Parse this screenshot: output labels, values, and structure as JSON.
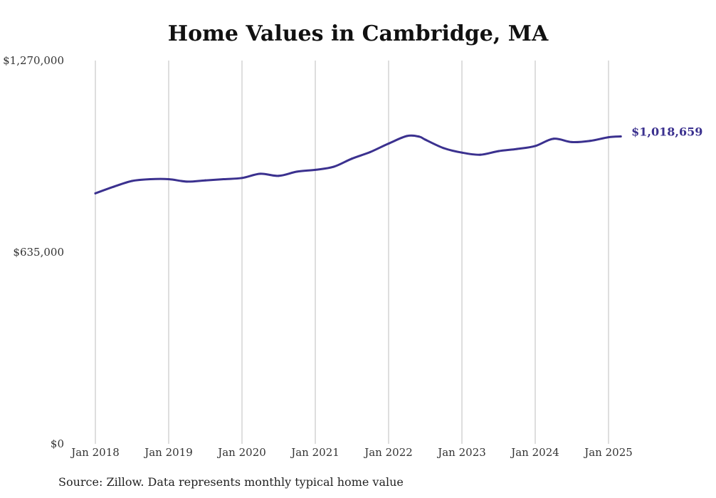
{
  "page": {
    "title": "Home Values in Cambridge, MA",
    "source": "Source: Zillow. Data represents monthly typical home value"
  },
  "chart_data": {
    "type": "line",
    "title": "Home Values in Cambridge, MA",
    "xlabel": "",
    "ylabel": "",
    "x_ticks": [
      "Jan 2018",
      "Jan 2019",
      "Jan 2020",
      "Jan 2021",
      "Jan 2022",
      "Jan 2023",
      "Jan 2024",
      "Jan 2025"
    ],
    "y_ticks": [
      {
        "value": 0,
        "label": "$0"
      },
      {
        "value": 635000,
        "label": "$635,000"
      },
      {
        "value": 1270000,
        "label": "$1,270,000"
      }
    ],
    "ylim": [
      0,
      1270000
    ],
    "xlim": [
      "2018-01",
      "2025-03"
    ],
    "grid": {
      "vertical": true,
      "horizontal": false
    },
    "line_color": "#3b318f",
    "grid_color": "#bdbdbd",
    "end_label": "$1,018,659",
    "series": [
      {
        "x": [
          "2018-01",
          "2018-04",
          "2018-07",
          "2018-10",
          "2019-01",
          "2019-04",
          "2019-07",
          "2019-10",
          "2020-01",
          "2020-04",
          "2020-07",
          "2020-10",
          "2021-01",
          "2021-04",
          "2021-07",
          "2021-10",
          "2022-01",
          "2022-04",
          "2022-06",
          "2022-07",
          "2022-10",
          "2023-01",
          "2023-04",
          "2023-07",
          "2023-10",
          "2024-01",
          "2024-04",
          "2024-07",
          "2024-10",
          "2025-01",
          "2025-03"
        ],
        "values": [
          830000,
          852000,
          871000,
          877000,
          877000,
          869000,
          873000,
          877000,
          881000,
          895000,
          888000,
          902000,
          908000,
          918000,
          945000,
          967000,
          995000,
          1020000,
          1018000,
          1008000,
          980000,
          965000,
          958000,
          970000,
          977000,
          987000,
          1011000,
          1000000,
          1004000,
          1016000,
          1018659
        ]
      }
    ]
  }
}
